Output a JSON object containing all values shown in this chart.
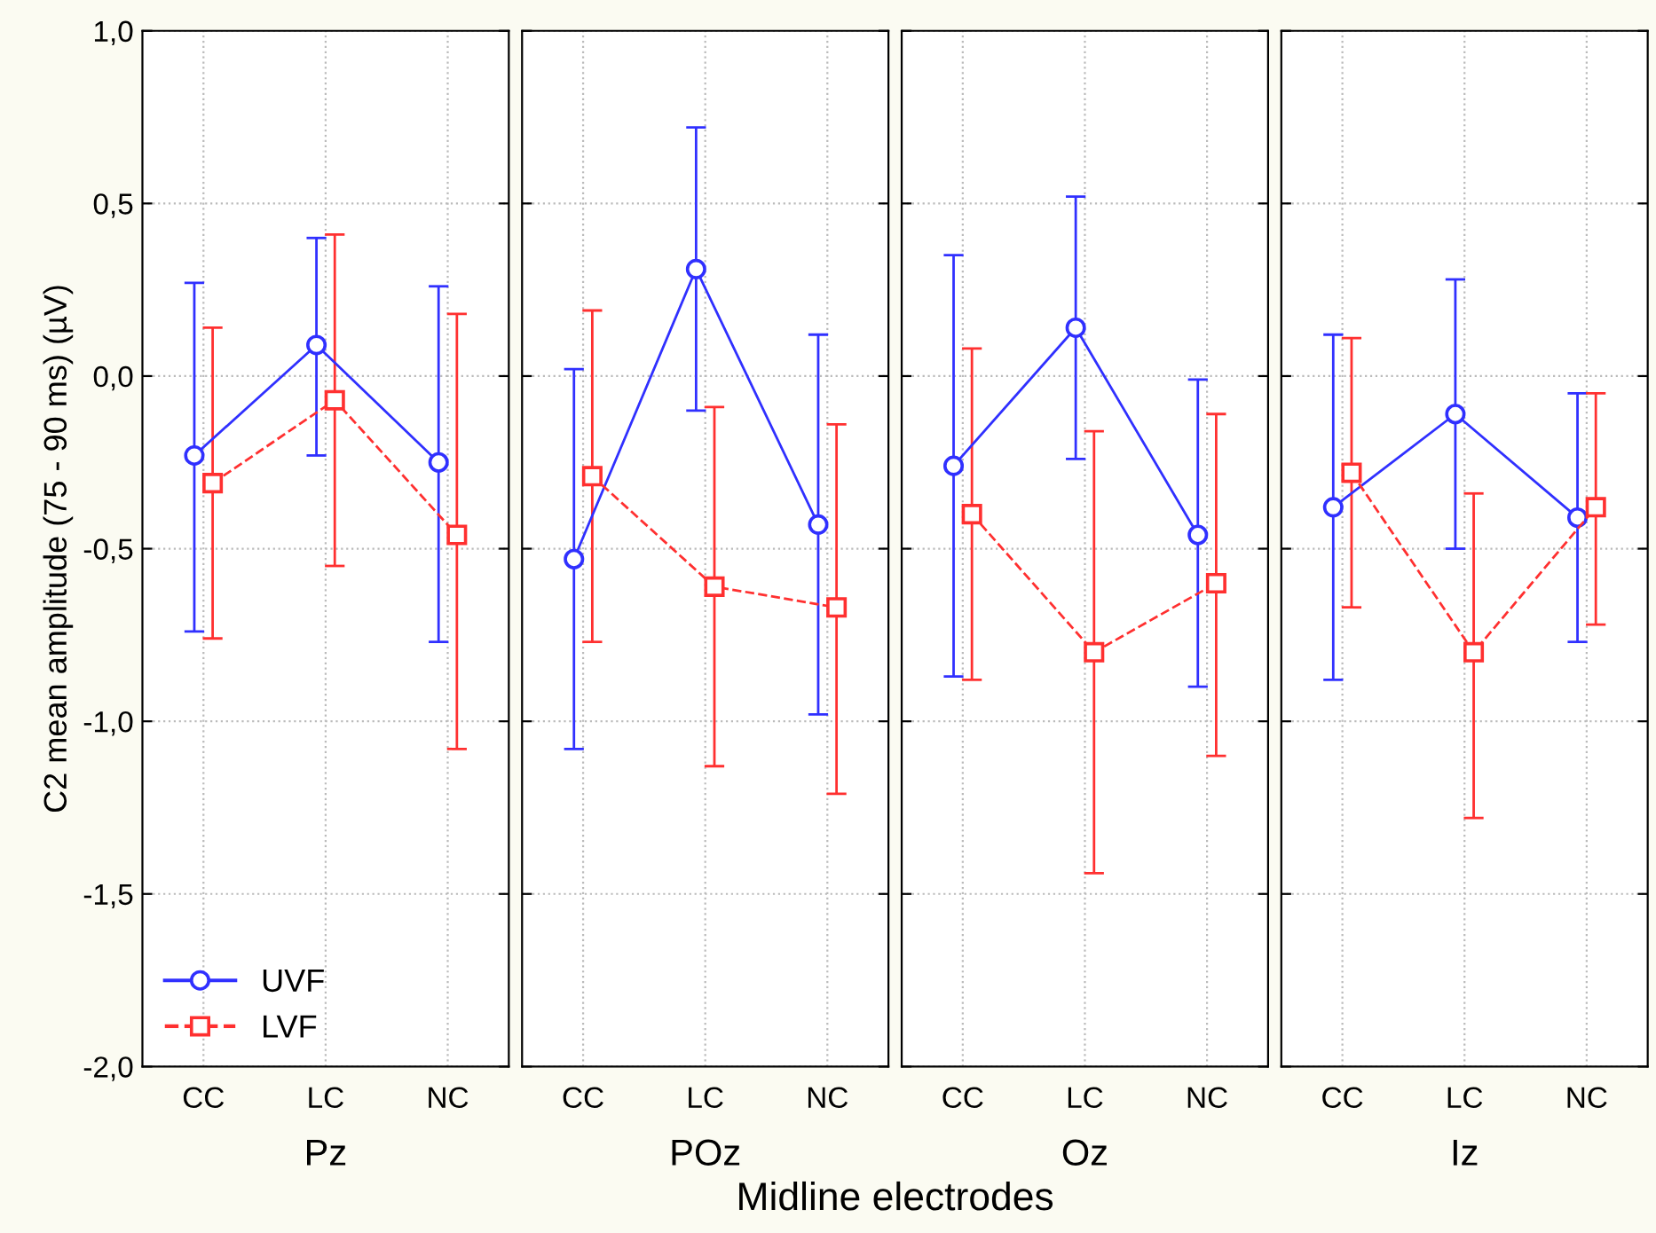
{
  "chart_data": [
    {
      "type": "line",
      "xlabel": "Pz",
      "ylabel": "C2 mean amplitude (75 - 90 ms) (µV)",
      "annotations": [
        "Midline electrodes"
      ],
      "categories": [
        "CC",
        "LC",
        "NC"
      ],
      "ylim": [
        -2.0,
        1.0
      ],
      "yticks": [
        {
          "value": -2.0,
          "label": "-2,0"
        },
        {
          "value": -1.5,
          "label": "-1,5"
        },
        {
          "value": -1.0,
          "label": "-1,0"
        },
        {
          "value": -0.5,
          "label": "-0,5"
        },
        {
          "value": 0.0,
          "label": "0,0"
        },
        {
          "value": 0.5,
          "label": "0,5"
        },
        {
          "value": 1.0,
          "label": "1,0"
        }
      ],
      "grid": true,
      "legend": "bottom left",
      "series": [
        {
          "name": "UVF",
          "color": "#3030ff",
          "marker": "circle",
          "line_style": "solid",
          "values": [
            -0.23,
            0.09,
            -0.25
          ],
          "errors": [
            [
              -0.74,
              0.27
            ],
            [
              -0.23,
              0.4
            ],
            [
              -0.77,
              0.26
            ]
          ]
        },
        {
          "name": "LVF",
          "color": "#ff3030",
          "marker": "square",
          "line_style": "dashed",
          "values": [
            -0.31,
            -0.07,
            -0.46
          ],
          "errors": [
            [
              -0.76,
              0.14
            ],
            [
              -0.55,
              0.41
            ],
            [
              -1.08,
              0.18
            ]
          ]
        }
      ]
    },
    {
      "type": "line",
      "xlabel": "POz",
      "categories": [
        "CC",
        "LC",
        "NC"
      ],
      "ylim": [
        -2.0,
        1.0
      ],
      "grid": true,
      "tick_labels": "x",
      "series": [
        {
          "color": "#3030ff",
          "marker": "circle",
          "line_style": "solid",
          "values": [
            -0.53,
            0.31,
            -0.43
          ],
          "errors": [
            [
              -1.08,
              0.02
            ],
            [
              -0.1,
              0.72
            ],
            [
              -0.98,
              0.12
            ]
          ]
        },
        {
          "color": "#ff3030",
          "marker": "square",
          "line_style": "dashed",
          "values": [
            -0.29,
            -0.61,
            -0.67
          ],
          "errors": [
            [
              -0.77,
              0.19
            ],
            [
              -1.13,
              -0.09
            ],
            [
              -1.21,
              -0.14
            ]
          ]
        }
      ]
    },
    {
      "type": "line",
      "xlabel": "Oz",
      "categories": [
        "CC",
        "LC",
        "NC"
      ],
      "ylim": [
        -2.0,
        1.0
      ],
      "grid": true,
      "tick_labels": "x",
      "series": [
        {
          "color": "#3030ff",
          "marker": "circle",
          "line_style": "solid",
          "values": [
            -0.26,
            0.14,
            -0.46
          ],
          "errors": [
            [
              -0.87,
              0.35
            ],
            [
              -0.24,
              0.52
            ],
            [
              -0.9,
              -0.01
            ]
          ]
        },
        {
          "color": "#ff3030",
          "marker": "square",
          "line_style": "dashed",
          "values": [
            -0.4,
            -0.8,
            -0.6
          ],
          "errors": [
            [
              -0.88,
              0.08
            ],
            [
              -1.44,
              -0.16
            ],
            [
              -1.1,
              -0.11
            ]
          ]
        }
      ]
    },
    {
      "type": "line",
      "xlabel": "Iz",
      "categories": [
        "CC",
        "LC",
        "NC"
      ],
      "ylim": [
        -2.0,
        1.0
      ],
      "grid": true,
      "tick_labels": "x",
      "series": [
        {
          "color": "#3030ff",
          "marker": "circle",
          "line_style": "solid",
          "values": [
            -0.38,
            -0.11,
            -0.41
          ],
          "errors": [
            [
              -0.88,
              0.12
            ],
            [
              -0.5,
              0.28
            ],
            [
              -0.77,
              -0.05
            ]
          ]
        },
        {
          "color": "#ff3030",
          "marker": "square",
          "line_style": "dashed",
          "values": [
            -0.28,
            -0.8,
            -0.38
          ],
          "errors": [
            [
              -0.67,
              0.11
            ],
            [
              -1.28,
              -0.34
            ],
            [
              -0.72,
              -0.05
            ]
          ]
        }
      ]
    }
  ]
}
